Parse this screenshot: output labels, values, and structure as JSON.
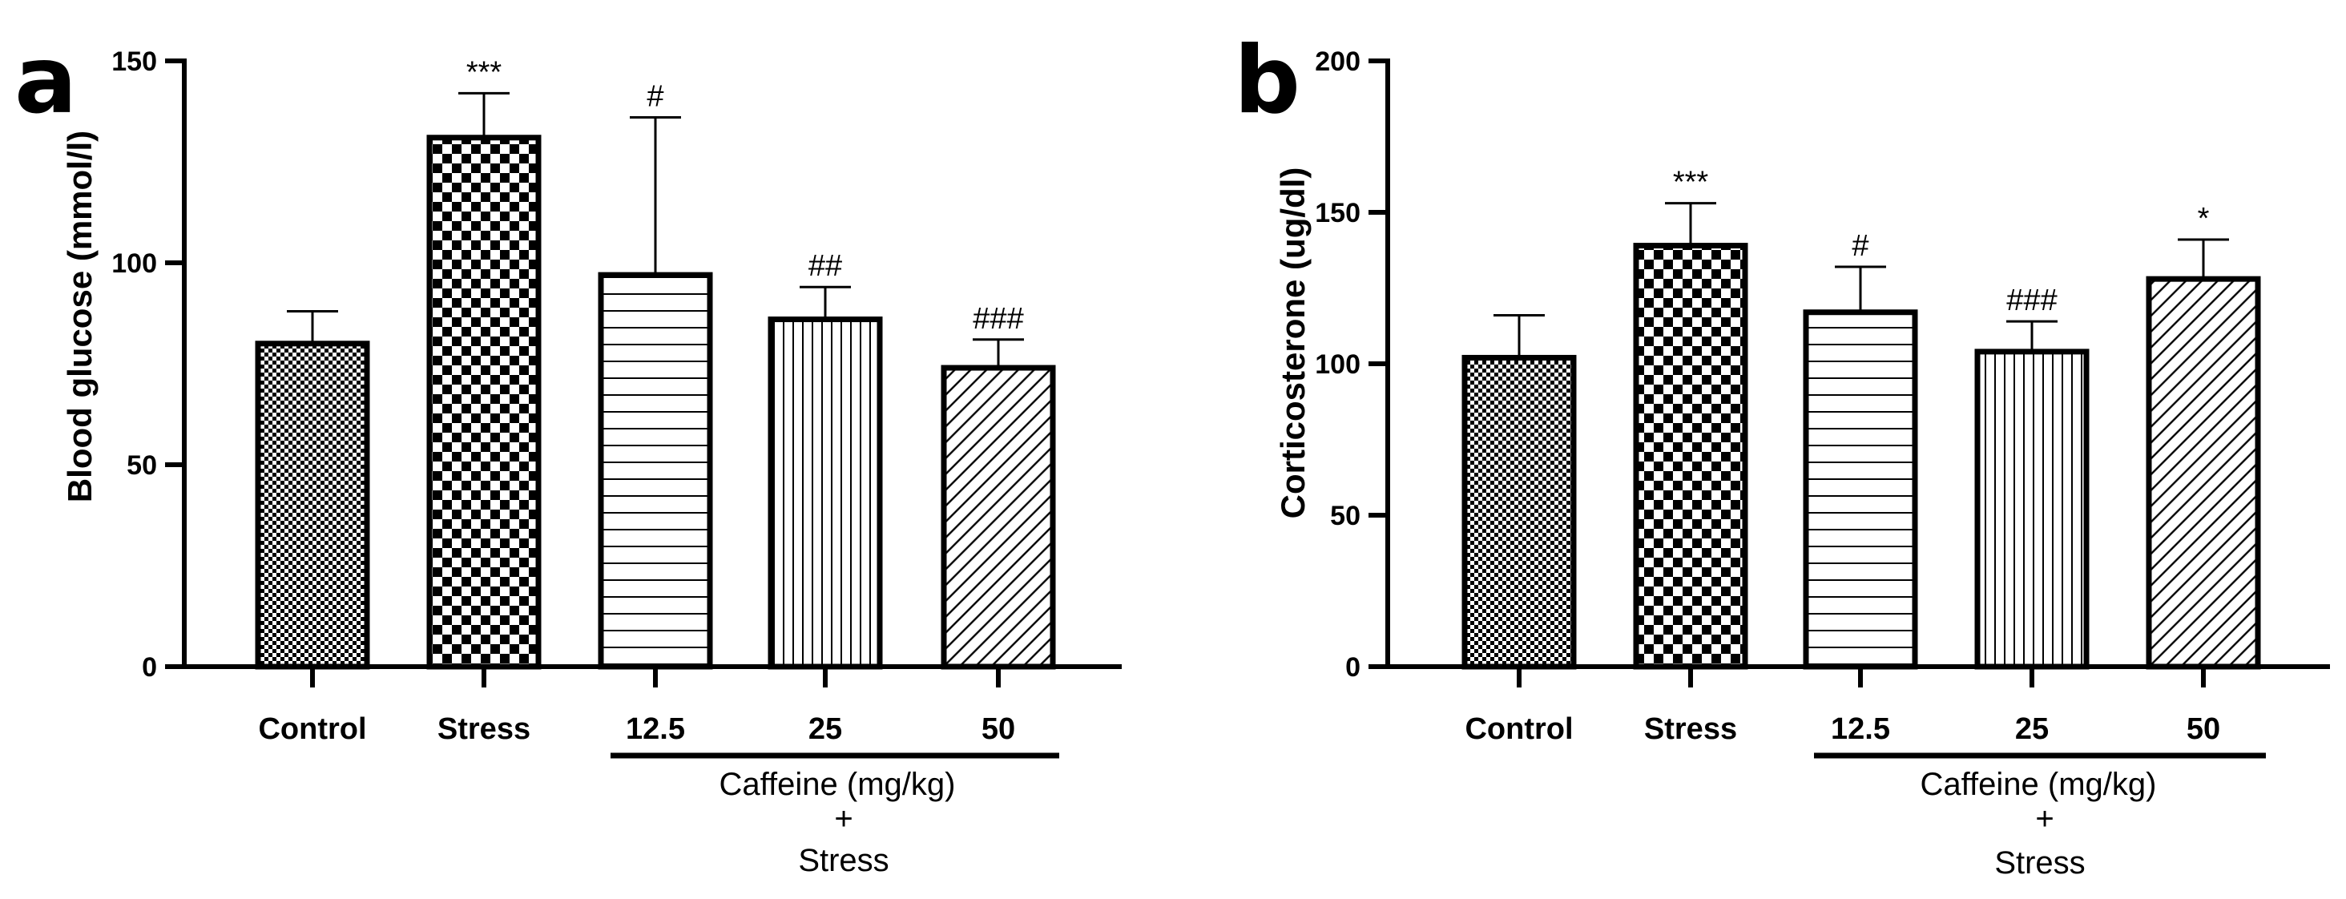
{
  "panels": [
    {
      "letter": "a",
      "group_label_line1": "Caffeine (mg/kg)",
      "group_label_line2": "+",
      "group_label_line3": "Stress"
    },
    {
      "letter": "b",
      "group_label_line1": "Caffeine (mg/kg)",
      "group_label_line2": "+",
      "group_label_line3": "Stress"
    }
  ],
  "chart_data": [
    {
      "type": "bar",
      "title": "",
      "xlabel": "",
      "ylabel": "Blood glucose (mmol/l)",
      "ylim": [
        0,
        150
      ],
      "yticks": [
        0,
        50,
        100,
        150
      ],
      "grid": false,
      "categories": [
        "Control",
        "Stress",
        "12.5",
        "25",
        "50"
      ],
      "values": [
        80,
        131,
        97,
        86,
        74
      ],
      "error_upper": [
        88,
        142,
        136,
        94,
        81
      ],
      "annotations": [
        "",
        "***",
        "#",
        "##",
        "###"
      ],
      "patterns": [
        "fine-check",
        "coarse-check",
        "horizontal-lines",
        "vertical-lines",
        "diagonal-lines"
      ]
    },
    {
      "type": "bar",
      "title": "",
      "xlabel": "",
      "ylabel": "Corticosterone (ug/dl)",
      "ylim": [
        0,
        200
      ],
      "yticks": [
        0,
        50,
        100,
        150,
        200
      ],
      "grid": false,
      "categories": [
        "Control",
        "Stress",
        "12.5",
        "25",
        "50"
      ],
      "values": [
        102,
        139,
        117,
        104,
        128
      ],
      "error_upper": [
        116,
        153,
        132,
        114,
        141
      ],
      "annotations": [
        "",
        "***",
        "#",
        "###",
        "*"
      ],
      "patterns": [
        "fine-check",
        "coarse-check",
        "horizontal-lines",
        "vertical-lines",
        "diagonal-lines"
      ]
    }
  ]
}
